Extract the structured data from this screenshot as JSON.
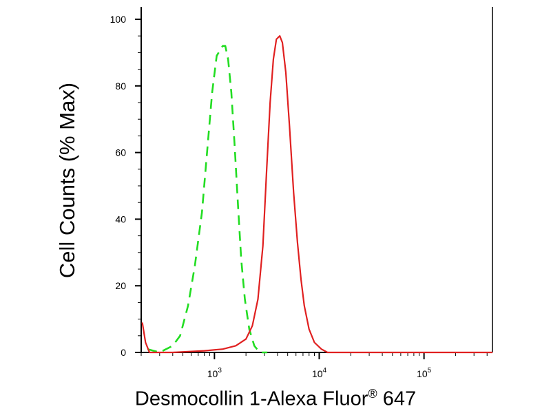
{
  "chart_data": {
    "type": "line",
    "title": "",
    "xlabel": "Desmocollin 1-Alexa Fluor",
    "xlabel_mark": "®",
    "xlabel_suffix": "647",
    "ylabel": "Cell Counts (% Max)",
    "xscale": "log",
    "xlim": [
      200,
      450000
    ],
    "ylim": [
      0,
      100
    ],
    "x_ticks": [
      {
        "value": 1000,
        "base": "10",
        "exp": "3"
      },
      {
        "value": 10000,
        "base": "10",
        "exp": "4"
      },
      {
        "value": 100000,
        "base": "10",
        "exp": "5"
      }
    ],
    "y_ticks": [
      0,
      20,
      40,
      60,
      80,
      100
    ],
    "grid": false,
    "legend": "none",
    "series": [
      {
        "color": "#22dd22",
        "style": "dashed",
        "points": [
          [
            230,
            1
          ],
          [
            300,
            0
          ],
          [
            400,
            2
          ],
          [
            470,
            5
          ],
          [
            560,
            14
          ],
          [
            650,
            26
          ],
          [
            760,
            42
          ],
          [
            850,
            60
          ],
          [
            950,
            78
          ],
          [
            1050,
            89
          ],
          [
            1120,
            90.5
          ],
          [
            1200,
            92
          ],
          [
            1270,
            92
          ],
          [
            1350,
            88
          ],
          [
            1450,
            78
          ],
          [
            1560,
            62
          ],
          [
            1680,
            44
          ],
          [
            1800,
            28
          ],
          [
            1950,
            16
          ],
          [
            2150,
            7
          ],
          [
            2400,
            2
          ],
          [
            2700,
            0
          ],
          [
            3200,
            0
          ]
        ]
      },
      {
        "color": "#e02020",
        "style": "solid",
        "points": [
          [
            205,
            9
          ],
          [
            220,
            3
          ],
          [
            240,
            0
          ],
          [
            400,
            0
          ],
          [
            800,
            0.5
          ],
          [
            1200,
            1
          ],
          [
            1600,
            2
          ],
          [
            2000,
            4
          ],
          [
            2300,
            8
          ],
          [
            2600,
            16
          ],
          [
            2900,
            32
          ],
          [
            3150,
            55
          ],
          [
            3400,
            75
          ],
          [
            3650,
            88
          ],
          [
            3900,
            94
          ],
          [
            4200,
            95
          ],
          [
            4450,
            93
          ],
          [
            4800,
            84
          ],
          [
            5200,
            68
          ],
          [
            5700,
            48
          ],
          [
            6200,
            33
          ],
          [
            6700,
            22
          ],
          [
            7200,
            14
          ],
          [
            8000,
            7
          ],
          [
            9000,
            3
          ],
          [
            10500,
            1
          ],
          [
            12000,
            0
          ],
          [
            450000,
            0
          ]
        ]
      }
    ]
  }
}
